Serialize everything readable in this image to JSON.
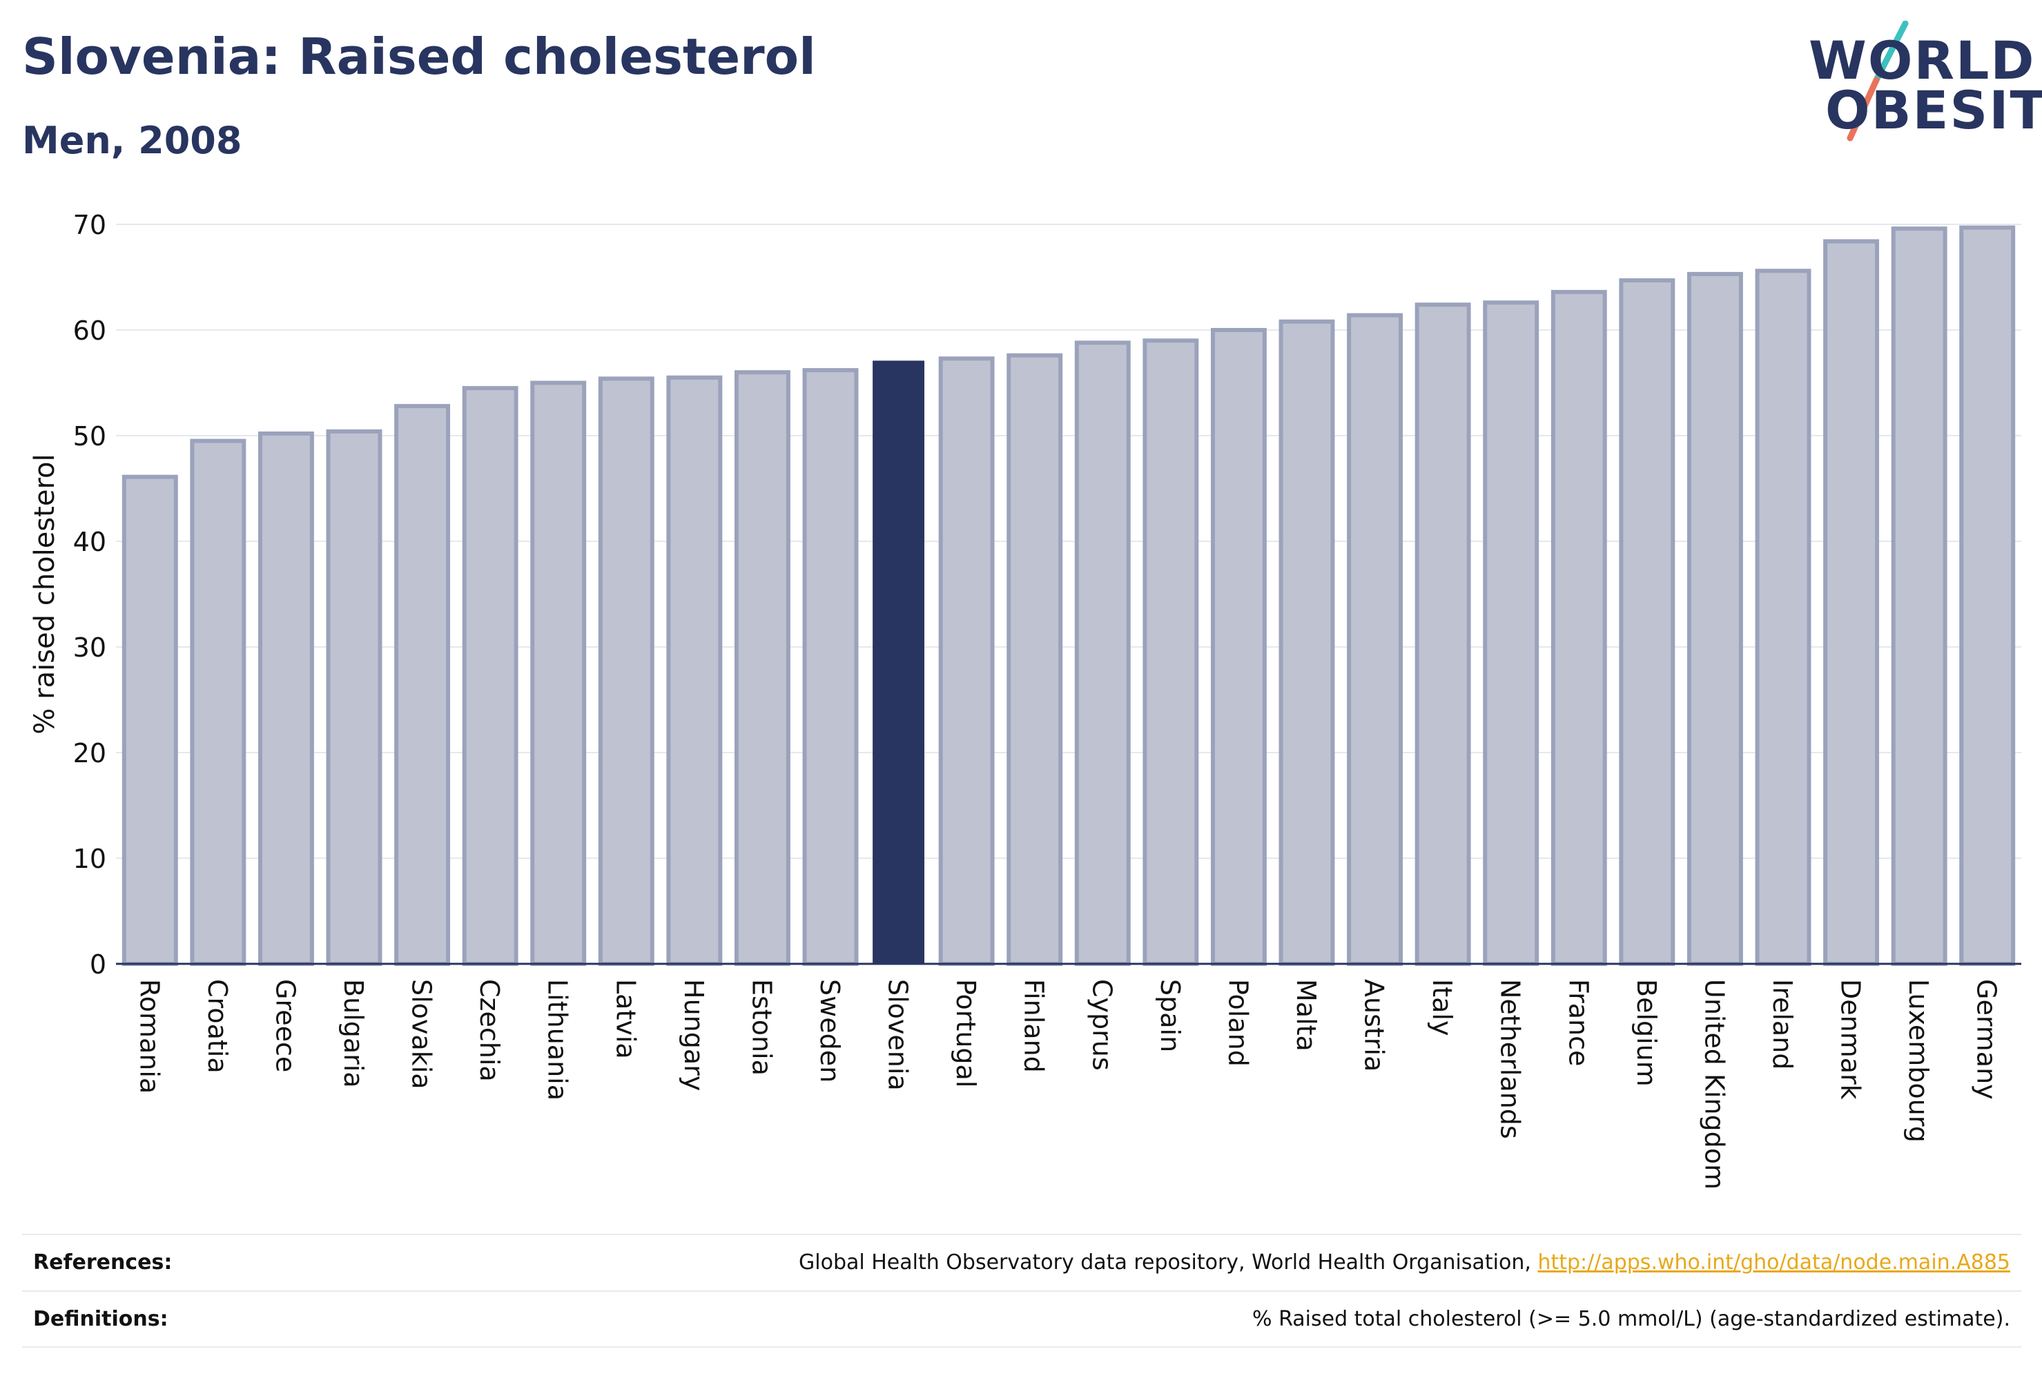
{
  "header": {
    "title": "Slovenia: Raised cholesterol",
    "subtitle": "Men, 2008"
  },
  "logo": {
    "line1": "WORLD",
    "line2": "OBESITY",
    "slash_colors": [
      "#3cc0c0",
      "#e8735a"
    ]
  },
  "footer": {
    "references_label": "References:",
    "references_text": "Global Health Observatory data repository, World Health Organisation, ",
    "references_link": "http://apps.who.int/gho/data/node.main.A885",
    "definitions_label": "Definitions:",
    "definitions_text": "% Raised total cholesterol (>= 5.0 mmol/L) (age-standardized estimate)."
  },
  "colors": {
    "highlight": "#283560",
    "bar_fill": "#bfc3d1",
    "bar_stroke": "#9ba2bb",
    "grid": "#e6e8ee",
    "axis": "#283560"
  },
  "chart_data": {
    "type": "bar",
    "title": "Slovenia: Raised cholesterol",
    "subtitle": "Men, 2008",
    "ylabel": "% raised cholesterol",
    "xlabel": "",
    "ylim": [
      0,
      70
    ],
    "yticks": [
      0,
      10,
      20,
      30,
      40,
      50,
      60,
      70
    ],
    "grid": true,
    "highlight": "Slovenia",
    "categories": [
      "Romania",
      "Croatia",
      "Greece",
      "Bulgaria",
      "Slovakia",
      "Czechia",
      "Lithuania",
      "Latvia",
      "Hungary",
      "Estonia",
      "Sweden",
      "Slovenia",
      "Portugal",
      "Finland",
      "Cyprus",
      "Spain",
      "Poland",
      "Malta",
      "Austria",
      "Italy",
      "Netherlands",
      "France",
      "Belgium",
      "United Kingdom",
      "Ireland",
      "Denmark",
      "Luxembourg",
      "Germany"
    ],
    "values": [
      46.1,
      49.5,
      50.2,
      50.4,
      52.8,
      54.5,
      55.0,
      55.4,
      55.5,
      56.0,
      56.2,
      57.1,
      57.3,
      57.6,
      58.8,
      59.0,
      60.0,
      60.8,
      61.4,
      62.4,
      62.6,
      63.6,
      64.7,
      65.3,
      65.6,
      68.4,
      69.6,
      69.7
    ]
  }
}
